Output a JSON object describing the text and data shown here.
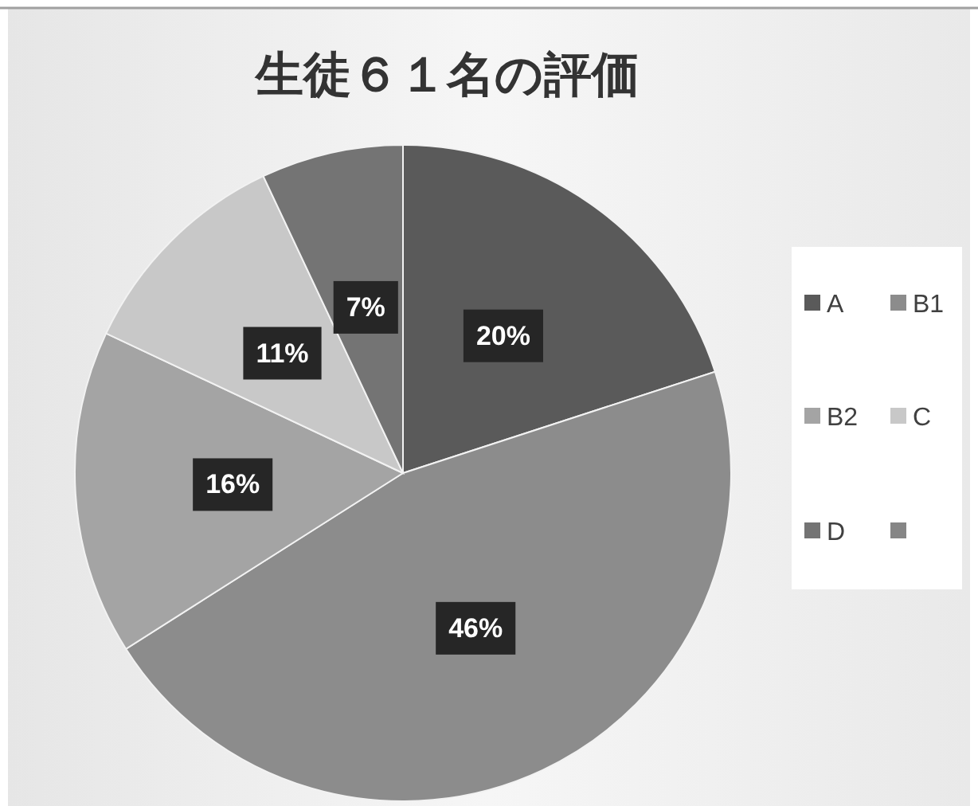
{
  "chart_data": {
    "type": "pie",
    "title": "生徒６１名の評価",
    "categories": [
      "A",
      "B1",
      "B2",
      "C",
      "D",
      null
    ],
    "values": [
      20,
      46,
      16,
      11,
      7,
      0
    ],
    "colors": [
      "#5a5a5a",
      "#8c8c8c",
      "#a4a4a4",
      "#c8c8c8",
      "#747474",
      "#868686"
    ],
    "value_labels": [
      "20%",
      "46%",
      "16%",
      "11%",
      "7%",
      null
    ],
    "legend": "right"
  }
}
